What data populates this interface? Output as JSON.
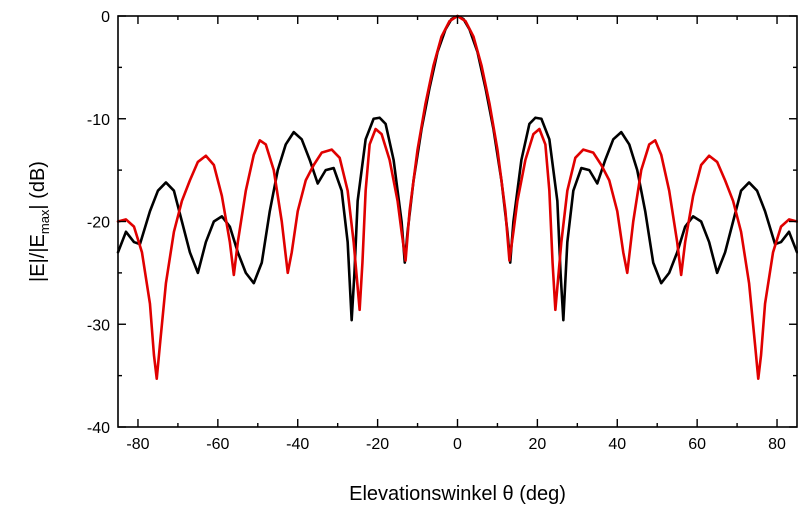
{
  "chart_data": {
    "type": "line",
    "title": "",
    "xlabel": "Elevationswinkel θ (deg)",
    "ylabel_parts": {
      "pre": "|E|/|E",
      "sub": "max",
      "post": "| (dB)"
    },
    "xlim": [
      -85,
      85
    ],
    "ylim": [
      -40,
      0
    ],
    "x_ticks": [
      -80,
      -60,
      -40,
      -20,
      0,
      20,
      40,
      60,
      80
    ],
    "x_tick_labels": [
      "-80",
      "-60",
      "-40",
      "-20",
      "0",
      "20",
      "40",
      "60",
      "80"
    ],
    "y_ticks": [
      0,
      -10,
      -20,
      -30,
      -40
    ],
    "y_tick_labels": [
      "0",
      "-10",
      "-20",
      "-30",
      "-40"
    ],
    "grid": false,
    "legend": "none",
    "series": [
      {
        "color": "#000000",
        "points": [
          [
            -85,
            -23
          ],
          [
            -83,
            -21
          ],
          [
            -81,
            -22
          ],
          [
            -79.5,
            -22.2
          ],
          [
            -77,
            -19
          ],
          [
            -75,
            -17
          ],
          [
            -73,
            -16.2
          ],
          [
            -71,
            -17
          ],
          [
            -69,
            -20
          ],
          [
            -67,
            -23
          ],
          [
            -65,
            -25
          ],
          [
            -63,
            -22
          ],
          [
            -61,
            -20
          ],
          [
            -59,
            -19.5
          ],
          [
            -57,
            -20.5
          ],
          [
            -55,
            -23
          ],
          [
            -53,
            -25
          ],
          [
            -51,
            -26
          ],
          [
            -49,
            -24
          ],
          [
            -47,
            -19
          ],
          [
            -45,
            -15
          ],
          [
            -43,
            -12.5
          ],
          [
            -41,
            -11.3
          ],
          [
            -39,
            -12
          ],
          [
            -37,
            -14
          ],
          [
            -35,
            -16.3
          ],
          [
            -33,
            -15
          ],
          [
            -31,
            -14.8
          ],
          [
            -29,
            -17
          ],
          [
            -27.5,
            -22
          ],
          [
            -26.5,
            -29.6
          ],
          [
            -25.8,
            -25
          ],
          [
            -25,
            -18
          ],
          [
            -23,
            -12
          ],
          [
            -21,
            -10
          ],
          [
            -19.5,
            -9.9
          ],
          [
            -18,
            -10.5
          ],
          [
            -16,
            -14
          ],
          [
            -14,
            -20
          ],
          [
            -13.2,
            -24
          ],
          [
            -12.5,
            -21
          ],
          [
            -11,
            -16
          ],
          [
            -9,
            -11
          ],
          [
            -7,
            -7
          ],
          [
            -5,
            -3.5
          ],
          [
            -3,
            -1.3
          ],
          [
            -1.5,
            -0.3
          ],
          [
            0,
            0
          ],
          [
            1.5,
            -0.3
          ],
          [
            3,
            -1.3
          ],
          [
            5,
            -3.5
          ],
          [
            7,
            -7
          ],
          [
            9,
            -11
          ],
          [
            11,
            -16
          ],
          [
            12.5,
            -21
          ],
          [
            13.2,
            -24
          ],
          [
            14,
            -20
          ],
          [
            16,
            -14
          ],
          [
            18,
            -10.5
          ],
          [
            19.5,
            -9.9
          ],
          [
            21,
            -10
          ],
          [
            23,
            -12
          ],
          [
            25,
            -18
          ],
          [
            25.8,
            -25
          ],
          [
            26.5,
            -29.6
          ],
          [
            27.5,
            -22
          ],
          [
            29,
            -17
          ],
          [
            31,
            -14.8
          ],
          [
            33,
            -15
          ],
          [
            35,
            -16.3
          ],
          [
            37,
            -14
          ],
          [
            39,
            -12
          ],
          [
            41,
            -11.3
          ],
          [
            43,
            -12.5
          ],
          [
            45,
            -15
          ],
          [
            47,
            -19
          ],
          [
            49,
            -24
          ],
          [
            51,
            -26
          ],
          [
            53,
            -25
          ],
          [
            55,
            -23
          ],
          [
            57,
            -20.5
          ],
          [
            59,
            -19.5
          ],
          [
            61,
            -20
          ],
          [
            63,
            -22
          ],
          [
            65,
            -25
          ],
          [
            67,
            -23
          ],
          [
            69,
            -20
          ],
          [
            71,
            -17
          ],
          [
            73,
            -16.2
          ],
          [
            75,
            -17
          ],
          [
            77,
            -19
          ],
          [
            79.5,
            -22.2
          ],
          [
            81,
            -22
          ],
          [
            83,
            -21
          ],
          [
            85,
            -23
          ]
        ]
      },
      {
        "color": "#e00000",
        "points": [
          [
            -85,
            -20
          ],
          [
            -83,
            -19.8
          ],
          [
            -81,
            -20.5
          ],
          [
            -79,
            -23
          ],
          [
            -77,
            -28
          ],
          [
            -76,
            -33
          ],
          [
            -75.3,
            -35.3
          ],
          [
            -74.5,
            -32
          ],
          [
            -73,
            -26
          ],
          [
            -71,
            -21
          ],
          [
            -69,
            -18
          ],
          [
            -67,
            -16
          ],
          [
            -65,
            -14.2
          ],
          [
            -63,
            -13.6
          ],
          [
            -61,
            -14.5
          ],
          [
            -59,
            -17.5
          ],
          [
            -57,
            -22
          ],
          [
            -56,
            -25.2
          ],
          [
            -55,
            -22
          ],
          [
            -53,
            -17
          ],
          [
            -51,
            -13.5
          ],
          [
            -49.5,
            -12.1
          ],
          [
            -48,
            -12.5
          ],
          [
            -46,
            -15
          ],
          [
            -44,
            -20
          ],
          [
            -42.5,
            -25
          ],
          [
            -41.5,
            -23
          ],
          [
            -40,
            -19
          ],
          [
            -38,
            -16
          ],
          [
            -36,
            -14.5
          ],
          [
            -34,
            -13.3
          ],
          [
            -31.5,
            -13
          ],
          [
            -29.5,
            -13.8
          ],
          [
            -27.5,
            -17
          ],
          [
            -26,
            -22
          ],
          [
            -24.5,
            -28.6
          ],
          [
            -23.8,
            -24
          ],
          [
            -23,
            -17
          ],
          [
            -22,
            -12.5
          ],
          [
            -20.5,
            -11
          ],
          [
            -19,
            -11.5
          ],
          [
            -17,
            -14
          ],
          [
            -15,
            -18
          ],
          [
            -14,
            -21
          ],
          [
            -13,
            -23.8
          ],
          [
            -12,
            -19
          ],
          [
            -10,
            -13
          ],
          [
            -8,
            -8.5
          ],
          [
            -6,
            -4.8
          ],
          [
            -4,
            -2
          ],
          [
            -2,
            -0.5
          ],
          [
            0,
            0
          ],
          [
            2,
            -0.5
          ],
          [
            4,
            -2
          ],
          [
            6,
            -4.8
          ],
          [
            8,
            -8.5
          ],
          [
            10,
            -13
          ],
          [
            12,
            -19
          ],
          [
            13,
            -23.8
          ],
          [
            14,
            -21
          ],
          [
            15,
            -18
          ],
          [
            17,
            -14
          ],
          [
            19,
            -11.5
          ],
          [
            20.5,
            -11
          ],
          [
            22,
            -12.5
          ],
          [
            23,
            -17
          ],
          [
            23.8,
            -24
          ],
          [
            24.5,
            -28.6
          ],
          [
            26,
            -22
          ],
          [
            27.5,
            -17
          ],
          [
            29.5,
            -13.8
          ],
          [
            31.5,
            -13
          ],
          [
            34,
            -13.3
          ],
          [
            36,
            -14.5
          ],
          [
            38,
            -16
          ],
          [
            40,
            -19
          ],
          [
            41.5,
            -23
          ],
          [
            42.5,
            -25
          ],
          [
            44,
            -20
          ],
          [
            46,
            -15
          ],
          [
            48,
            -12.5
          ],
          [
            49.5,
            -12.1
          ],
          [
            51,
            -13.5
          ],
          [
            53,
            -17
          ],
          [
            55,
            -22
          ],
          [
            56,
            -25.2
          ],
          [
            57,
            -22
          ],
          [
            59,
            -17.5
          ],
          [
            61,
            -14.5
          ],
          [
            63,
            -13.6
          ],
          [
            65,
            -14.2
          ],
          [
            67,
            -16
          ],
          [
            69,
            -18
          ],
          [
            71,
            -21
          ],
          [
            73,
            -26
          ],
          [
            74.5,
            -32
          ],
          [
            75.3,
            -35.3
          ],
          [
            76,
            -33
          ],
          [
            77,
            -28
          ],
          [
            79,
            -23
          ],
          [
            81,
            -20.5
          ],
          [
            83,
            -19.8
          ],
          [
            85,
            -20
          ]
        ]
      }
    ]
  }
}
